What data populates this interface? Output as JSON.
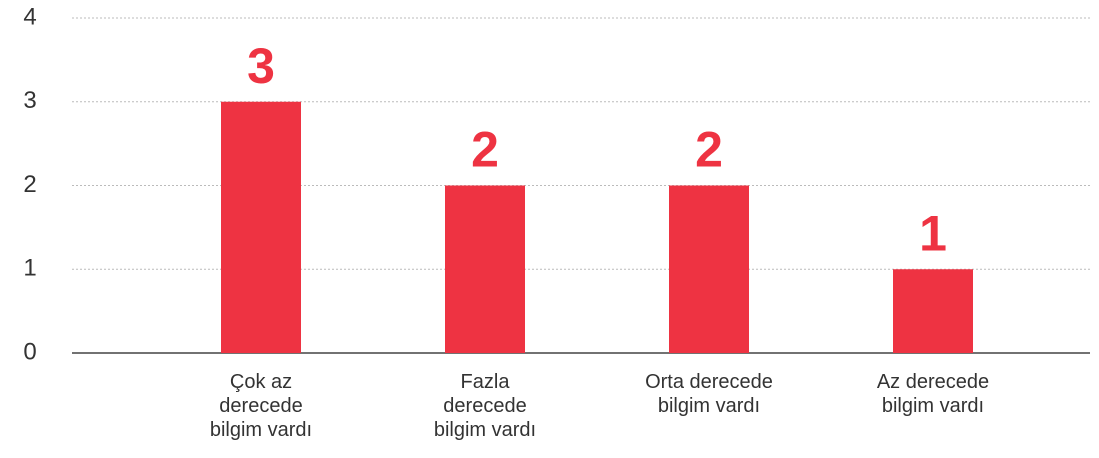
{
  "chart_data": {
    "type": "bar",
    "categories": [
      "Çok az derecede bilgim vardı",
      "Fazla derecede bilgim vardı",
      "Orta derecede bilgim vardı",
      "Az derecede bilgim vardı"
    ],
    "values": [
      3,
      2,
      2,
      1
    ],
    "color": "#ee3342",
    "ylim": [
      0,
      4
    ],
    "yticks": [
      0,
      1,
      2,
      3,
      4
    ],
    "grid": true
  }
}
